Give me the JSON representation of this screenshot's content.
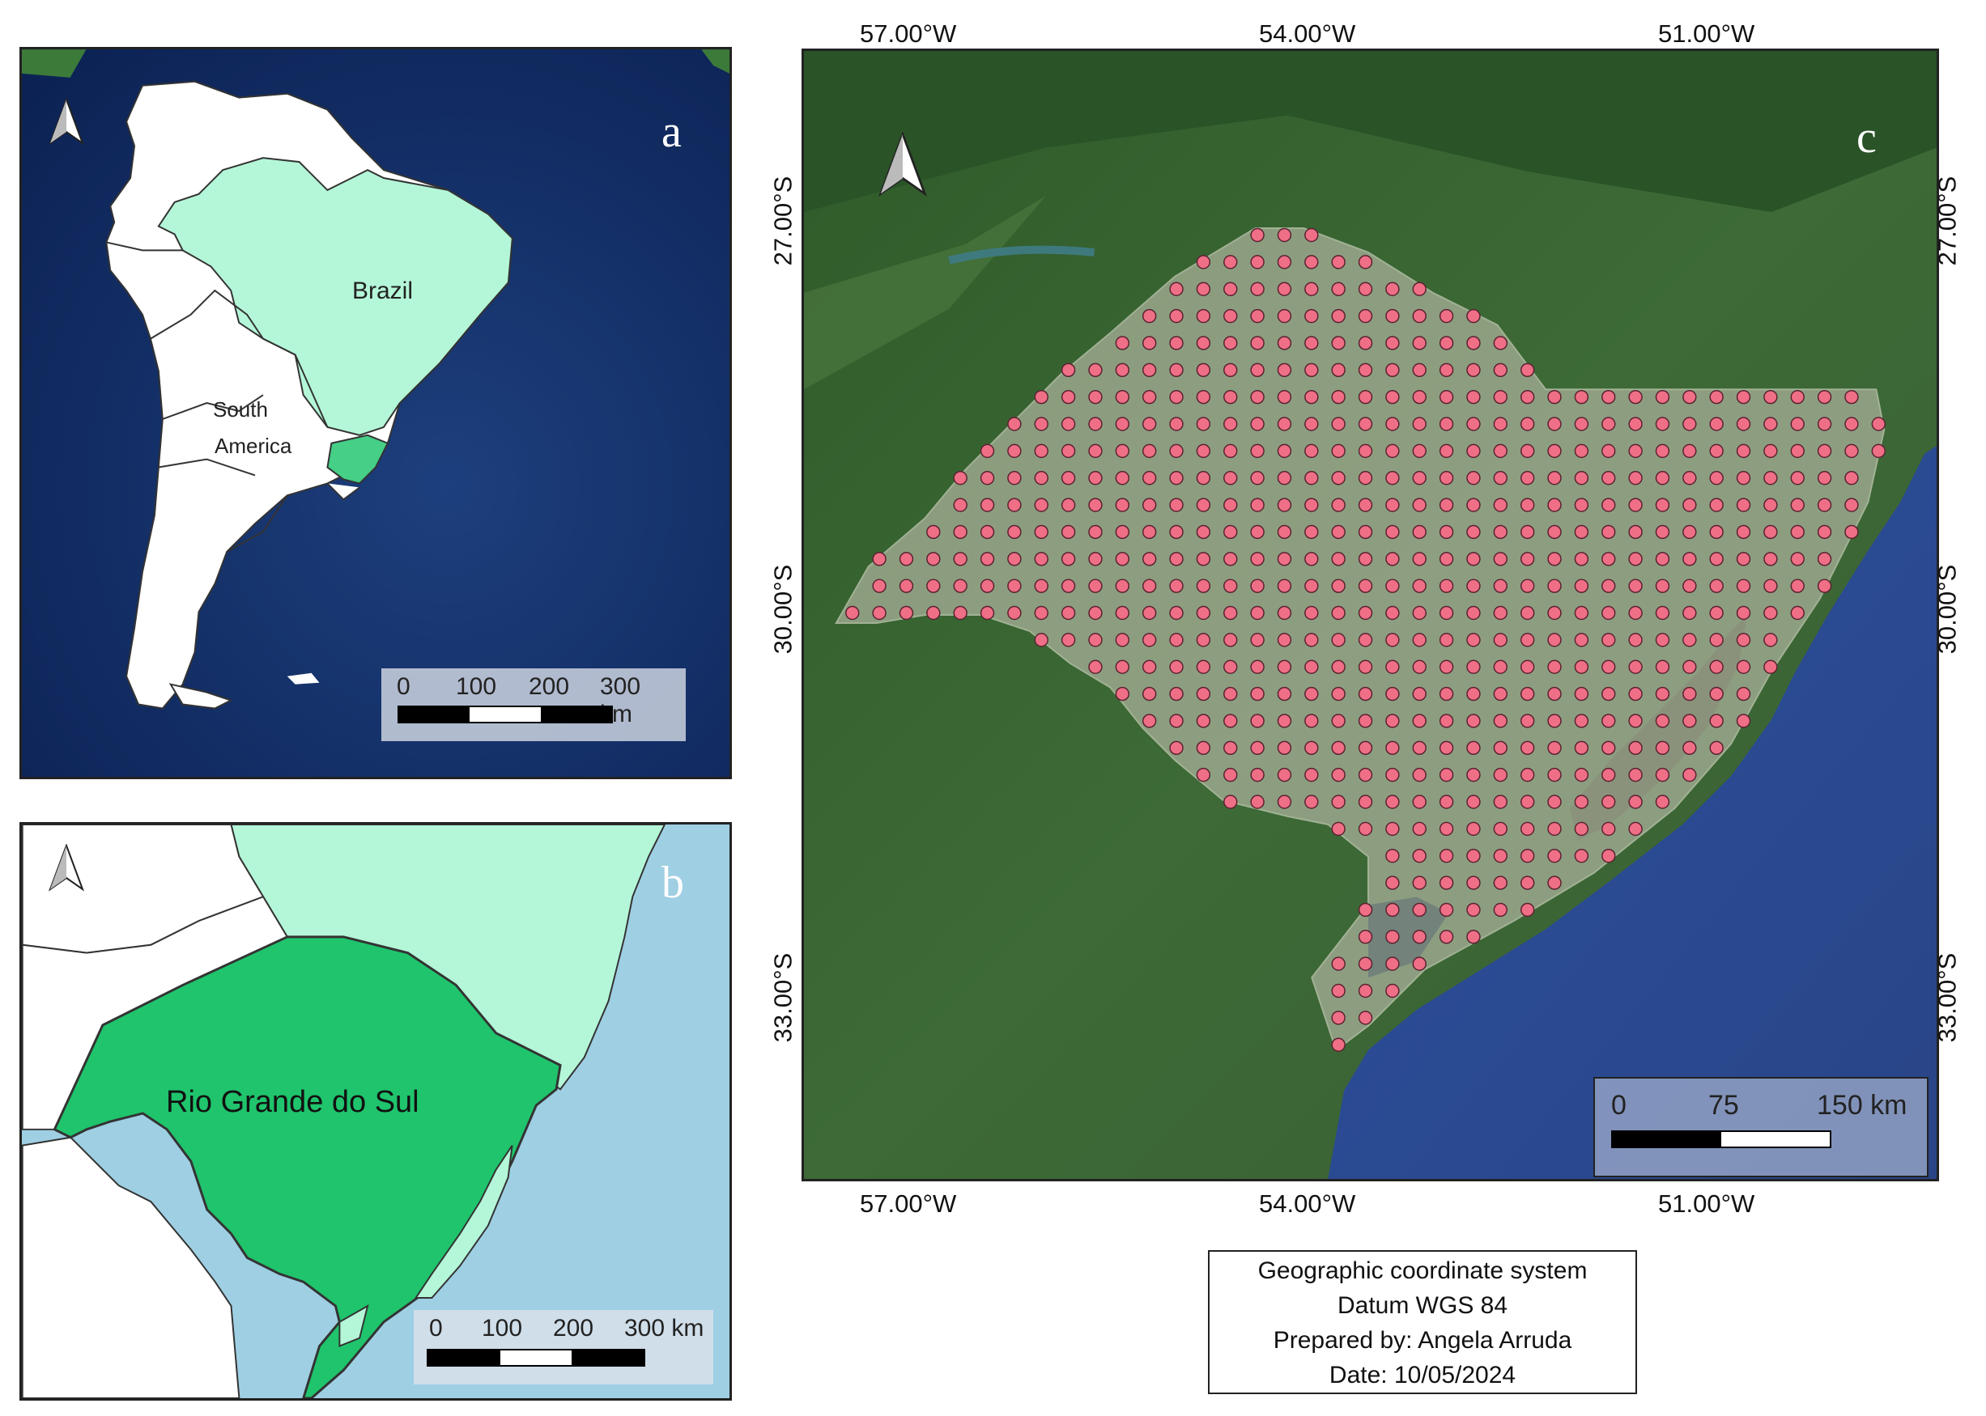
{
  "panel_a": {
    "letter": "a",
    "labels": {
      "country": "Brazil",
      "continent_line1": "South",
      "continent_line2": "America"
    },
    "scale": {
      "ticks": [
        "0",
        "100",
        "200",
        "300 km"
      ]
    },
    "icons": {
      "north": "north-arrow-icon"
    }
  },
  "panel_b": {
    "letter": "b",
    "labels": {
      "state": "Rio Grande do Sul"
    },
    "scale": {
      "ticks": [
        "0",
        "100",
        "200",
        "300 km"
      ]
    },
    "icons": {
      "north": "north-arrow-icon"
    }
  },
  "panel_c": {
    "letter": "c",
    "longitudes": [
      "57.00°W",
      "54.00°W",
      "51.00°W"
    ],
    "latitudes": [
      "27.00°S",
      "30.00°S",
      "33.00°S"
    ],
    "scale": {
      "ticks": [
        "0",
        "75",
        "150 km"
      ]
    },
    "icons": {
      "north": "north-arrow-icon"
    }
  },
  "info": {
    "line1": "Geographic coordinate system",
    "line2": "Datum WGS 84",
    "line3": "Prepared by: Angela Arruda",
    "line4": "Date: 10/05/2024"
  },
  "colors": {
    "ocean_dark": "#0f2a60",
    "ocean_light": "#9fcfe3",
    "brazil_fill": "#b4f7d8",
    "rs_fill": "#1fc46c",
    "sample_point": "#ef6f86",
    "grid_area": "#9aa78f",
    "land_satellite": "#35592f"
  }
}
